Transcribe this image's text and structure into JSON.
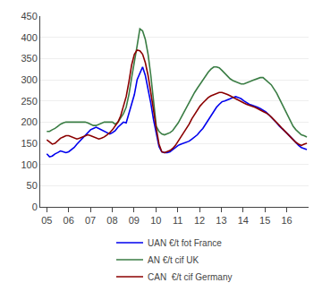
{
  "chart_data": {
    "type": "line",
    "x": [
      2005.0,
      2005.1255,
      2005.2509,
      2005.3764,
      2005.5019,
      2005.6274,
      2005.7528,
      2005.8783,
      2006.0038,
      2006.1293,
      2006.2547,
      2006.3802,
      2006.5057,
      2006.6312,
      2006.7566,
      2006.8821,
      2007.0076,
      2007.1331,
      2007.2585,
      2007.384,
      2007.5095,
      2007.6349,
      2007.7604,
      2007.8859,
      2008.0114,
      2008.1368,
      2008.2623,
      2008.3878,
      2008.5133,
      2008.6387,
      2008.7642,
      2008.8897,
      2009.0152,
      2009.1406,
      2009.2661,
      2009.3916,
      2009.5171,
      2009.6425,
      2009.768,
      2009.8935,
      2010.0189,
      2010.1444,
      2010.2699,
      2010.3954,
      2010.5208,
      2010.6463,
      2010.7718,
      2010.8973,
      2011.0227,
      2011.1482,
      2011.2737,
      2011.3992,
      2011.5246,
      2011.6501,
      2011.7756,
      2011.9011,
      2012.0265,
      2012.152,
      2012.2775,
      2012.4029,
      2012.5284,
      2012.6539,
      2012.7794,
      2012.9048,
      2013.0303,
      2013.1558,
      2013.2813,
      2013.4067,
      2013.5322,
      2013.6577,
      2013.7832,
      2013.9086,
      2014.0341,
      2014.1596,
      2014.2851,
      2014.4105,
      2014.536,
      2014.6615,
      2014.7869,
      2014.9124,
      2015.0379,
      2015.1634,
      2015.2888,
      2015.4143,
      2015.5398,
      2015.6653,
      2015.7907,
      2015.9162,
      2016.0417,
      2016.1672,
      2016.2926,
      2016.4181,
      2016.5436,
      2016.6691,
      2016.7945,
      2016.92
    ],
    "series": [
      {
        "name": "UAN €/t fot France",
        "color": "#0000ee",
        "values": [
          125,
          118,
          120,
          125,
          128,
          132,
          130,
          128,
          130,
          135,
          140,
          148,
          155,
          162,
          168,
          175,
          182,
          185,
          188,
          185,
          182,
          178,
          175,
          172,
          175,
          180,
          188,
          195,
          200,
          198,
          220,
          240,
          265,
          300,
          315,
          330,
          310,
          280,
          245,
          205,
          175,
          142,
          130,
          128,
          128,
          130,
          135,
          140,
          145,
          148,
          150,
          152,
          155,
          160,
          165,
          170,
          178,
          185,
          195,
          205,
          215,
          225,
          235,
          242,
          248,
          250,
          252,
          255,
          258,
          260,
          258,
          255,
          250,
          245,
          242,
          240,
          238,
          235,
          232,
          228,
          224,
          218,
          212,
          205,
          198,
          190,
          185,
          178,
          172,
          165,
          158,
          152,
          145,
          140,
          138,
          135
        ]
      },
      {
        "name": "AN €/t cif UK",
        "color": "#3a7d44",
        "values": [
          178,
          178,
          182,
          185,
          190,
          195,
          198,
          200,
          200,
          200,
          200,
          200,
          200,
          200,
          200,
          198,
          195,
          192,
          192,
          195,
          198,
          200,
          200,
          200,
          200,
          195,
          200,
          210,
          220,
          235,
          265,
          305,
          340,
          380,
          420,
          415,
          395,
          360,
          310,
          245,
          190,
          178,
          172,
          170,
          172,
          175,
          180,
          188,
          198,
          210,
          222,
          235,
          248,
          260,
          270,
          280,
          290,
          298,
          308,
          318,
          325,
          330,
          330,
          328,
          322,
          315,
          308,
          302,
          298,
          295,
          292,
          290,
          290,
          292,
          295,
          298,
          300,
          302,
          305,
          305,
          300,
          295,
          288,
          278,
          268,
          255,
          242,
          228,
          215,
          200,
          190,
          182,
          175,
          170,
          168,
          165
        ]
      },
      {
        "name": "CAN  €/t cif Germany",
        "color": "#8B0000",
        "values": [
          158,
          152,
          148,
          150,
          155,
          162,
          165,
          168,
          168,
          165,
          162,
          160,
          162,
          165,
          168,
          170,
          168,
          165,
          162,
          160,
          162,
          165,
          170,
          175,
          182,
          190,
          200,
          215,
          235,
          260,
          295,
          335,
          360,
          370,
          368,
          360,
          340,
          310,
          270,
          225,
          185,
          148,
          130,
          128,
          130,
          133,
          138,
          145,
          155,
          165,
          175,
          185,
          195,
          208,
          218,
          228,
          238,
          245,
          252,
          258,
          262,
          265,
          268,
          270,
          270,
          268,
          265,
          262,
          258,
          255,
          252,
          248,
          245,
          242,
          240,
          238,
          235,
          232,
          228,
          225,
          222,
          218,
          212,
          206,
          200,
          192,
          185,
          178,
          172,
          165,
          158,
          152,
          148,
          145,
          148,
          150
        ]
      }
    ],
    "xlim": [
      2004.7,
      2017.0
    ],
    "xticks": [
      {
        "value": 2005,
        "label": "05"
      },
      {
        "value": 2006,
        "label": "06"
      },
      {
        "value": 2007,
        "label": "07"
      },
      {
        "value": 2008,
        "label": "08"
      },
      {
        "value": 2009,
        "label": "09"
      },
      {
        "value": 2010,
        "label": "10"
      },
      {
        "value": 2011,
        "label": "11"
      },
      {
        "value": 2012,
        "label": "12"
      },
      {
        "value": 2013,
        "label": "13"
      },
      {
        "value": 2014,
        "label": "14"
      },
      {
        "value": 2015,
        "label": "15"
      },
      {
        "value": 2016,
        "label": "16"
      }
    ],
    "ylim": [
      0,
      450
    ],
    "yticks": [
      0,
      50,
      100,
      150,
      200,
      250,
      300,
      350,
      400,
      450
    ],
    "grid": "y",
    "legend": "bottom"
  }
}
